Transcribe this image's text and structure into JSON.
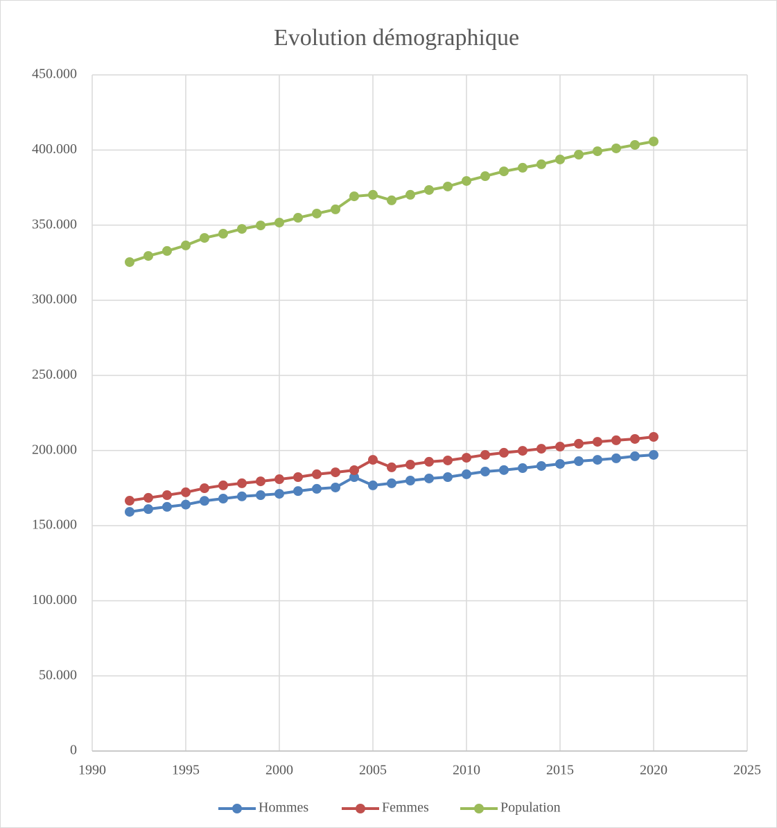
{
  "chart_data": {
    "type": "line",
    "title": "Evolution démographique",
    "x": [
      1992,
      1993,
      1994,
      1995,
      1996,
      1997,
      1998,
      1999,
      2000,
      2001,
      2002,
      2003,
      2004,
      2005,
      2006,
      2007,
      2008,
      2009,
      2010,
      2011,
      2012,
      2013,
      2014,
      2015,
      2016,
      2017,
      2018,
      2019,
      2020
    ],
    "series": [
      {
        "name": "Hommes",
        "color": "#4f81bd",
        "values": [
          159200,
          161000,
          162500,
          164000,
          166500,
          168000,
          169500,
          170300,
          171200,
          173000,
          174500,
          175400,
          182300,
          176800,
          178200,
          180000,
          181400,
          182300,
          184200,
          186000,
          187000,
          188300,
          189700,
          191100,
          192900,
          193800,
          194800,
          196200,
          197100
        ]
      },
      {
        "name": "Femmes",
        "color": "#c0504d",
        "values": [
          166600,
          168500,
          170300,
          172200,
          174900,
          176800,
          178200,
          179500,
          180900,
          182300,
          184200,
          185500,
          186900,
          193800,
          188800,
          190600,
          192500,
          193400,
          195200,
          197100,
          198500,
          199800,
          201200,
          202600,
          204500,
          205800,
          206800,
          207700,
          209100
        ]
      },
      {
        "name": "Population",
        "color": "#9bbb59",
        "values": [
          325400,
          329500,
          332800,
          336500,
          341500,
          344300,
          347500,
          349800,
          351700,
          354900,
          357700,
          360500,
          369200,
          370200,
          366500,
          370200,
          373400,
          375700,
          379400,
          382600,
          385800,
          388200,
          390500,
          393700,
          396900,
          399200,
          401100,
          403400,
          405700
        ]
      }
    ],
    "xlim": [
      1990,
      2025
    ],
    "xticks": [
      1990,
      1995,
      2000,
      2005,
      2010,
      2015,
      2020,
      2025
    ],
    "ylim": [
      0,
      450000
    ],
    "yticks": [
      0,
      {
        "value": 50000,
        "label": "50.000"
      },
      {
        "value": 100000,
        "label": "100.000"
      },
      {
        "value": 150000,
        "label": "150.000"
      },
      {
        "value": 200000,
        "label": "200.000"
      },
      {
        "value": 250000,
        "label": "250.000"
      },
      {
        "value": 300000,
        "label": "300.000"
      },
      {
        "value": 350000,
        "label": "350.000"
      },
      {
        "value": 400000,
        "label": "400.000"
      },
      {
        "value": 450000,
        "label": "450.000"
      }
    ],
    "grid": true,
    "legend": "bottom"
  }
}
